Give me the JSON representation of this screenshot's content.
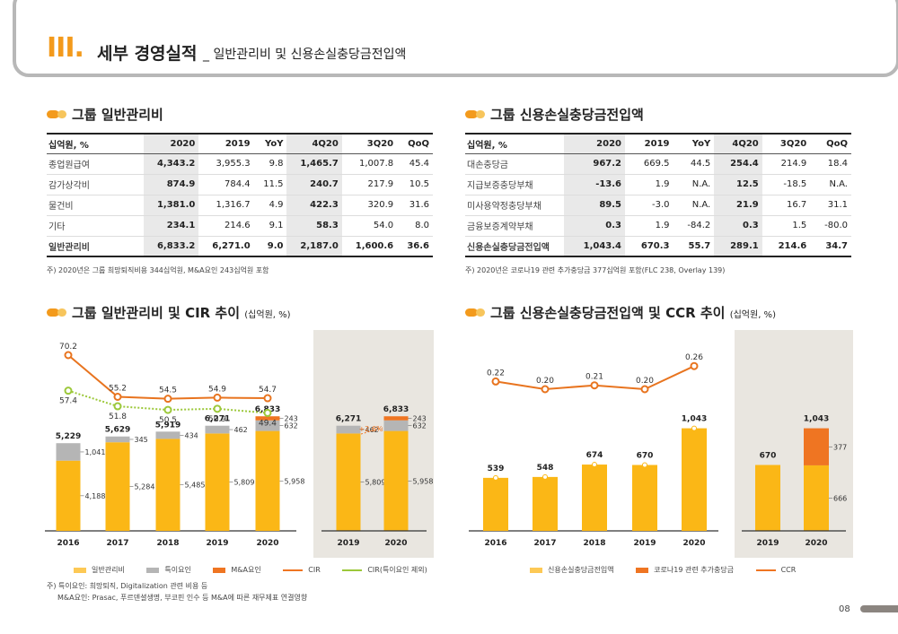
{
  "header": {
    "roman": "III",
    "title": "세부 경영실적",
    "subtitle": "_ 일반관리비 및 신용손실충당금전입액"
  },
  "sga_table": {
    "title": "그룹 일반관리비",
    "columns": [
      "십억원, %",
      "2020",
      "2019",
      "YoY",
      "4Q20",
      "3Q20",
      "QoQ"
    ],
    "rows": [
      [
        "종업원급여",
        "4,343.2",
        "3,955.3",
        "9.8",
        "1,465.7",
        "1,007.8",
        "45.4"
      ],
      [
        "감가상각비",
        "874.9",
        "784.4",
        "11.5",
        "240.7",
        "217.9",
        "10.5"
      ],
      [
        "물건비",
        "1,381.0",
        "1,316.7",
        "4.9",
        "422.3",
        "320.9",
        "31.6"
      ],
      [
        "기타",
        "234.1",
        "214.6",
        "9.1",
        "58.3",
        "54.0",
        "8.0"
      ]
    ],
    "total": [
      "일반관리비",
      "6,833.2",
      "6,271.0",
      "9.0",
      "2,187.0",
      "1,600.6",
      "36.6"
    ],
    "note": "주) 2020년은 그룹 희망퇴직비용 344십억원, M&A요인 243십억원 포함"
  },
  "ccl_table": {
    "title": "그룹 신용손실충당금전입액",
    "columns": [
      "십억원, %",
      "2020",
      "2019",
      "YoY",
      "4Q20",
      "3Q20",
      "QoQ"
    ],
    "rows": [
      [
        "대손충당금",
        "967.2",
        "669.5",
        "44.5",
        "254.4",
        "214.9",
        "18.4"
      ],
      [
        "지급보증충당부채",
        "-13.6",
        "1.9",
        "N.A.",
        "12.5",
        "-18.5",
        "N.A."
      ],
      [
        "미사용약정충당부채",
        "89.5",
        "-3.0",
        "N.A.",
        "21.9",
        "16.7",
        "31.1"
      ],
      [
        "금융보증계약부채",
        "0.3",
        "1.9",
        "-84.2",
        "0.3",
        "1.5",
        "-80.0"
      ]
    ],
    "total": [
      "신용손실충당금전입액",
      "1,043.4",
      "670.3",
      "55.7",
      "289.1",
      "214.6",
      "34.7"
    ],
    "note": "주) 2020년은 코로나19  관련 추가충당금 377십억원 포함(FLC 238, Overlay 139)"
  },
  "sga_chart_title": "그룹 일반관리비 및 CIR 추이",
  "sga_chart_unit": "(십억원, %)",
  "ccr_chart_title": "그룹 신용손실충당금전입액 및 CCR 추이",
  "ccr_chart_unit": "(십억원, %)",
  "chart_data": [
    {
      "type": "bar",
      "categories": [
        "2016",
        "2017",
        "2018",
        "2019",
        "2020"
      ],
      "series": [
        {
          "name": "일반관리비",
          "values": [
            4188,
            5284,
            5485,
            5809,
            5958
          ]
        },
        {
          "name": "특이요인",
          "values": [
            1041,
            345,
            434,
            462,
            632
          ]
        },
        {
          "name": "M&A요인",
          "values": [
            0,
            0,
            0,
            0,
            243
          ]
        }
      ],
      "totals": [
        "5,229",
        "5,629",
        "5,919",
        "6,271",
        "6,833"
      ],
      "segment_labels": [
        [
          "4,188",
          "1,041",
          ""
        ],
        [
          "5,284",
          "345",
          ""
        ],
        [
          "5,485",
          "434",
          ""
        ],
        [
          "5,809",
          "462",
          ""
        ],
        [
          "5,958",
          "632",
          "243"
        ]
      ],
      "lines": [
        {
          "name": "CIR",
          "values": [
            70.2,
            55.2,
            54.5,
            54.9,
            54.7
          ]
        },
        {
          "name": "CIR(특이요인 제외)",
          "values": [
            57.4,
            51.8,
            50.5,
            50.9,
            49.4
          ]
        }
      ]
    },
    {
      "type": "bar",
      "categories": [
        "2019",
        "2020"
      ],
      "series": [
        {
          "name": "일반관리비",
          "values": [
            5809,
            5958
          ]
        },
        {
          "name": "특이요인",
          "values": [
            462,
            632
          ]
        },
        {
          "name": "M&A요인",
          "values": [
            0,
            243
          ]
        }
      ],
      "totals": [
        "6,271",
        "6,833"
      ],
      "annotation": "+2.6%"
    },
    {
      "type": "bar",
      "categories": [
        "2016",
        "2017",
        "2018",
        "2019",
        "2020"
      ],
      "series": [
        {
          "name": "신용손실충당금전입액",
          "values": [
            539,
            548,
            674,
            670,
            1043
          ]
        }
      ],
      "totals": [
        "539",
        "548",
        "674",
        "670",
        "1,043"
      ],
      "lines": [
        {
          "name": "CCR",
          "values": [
            0.22,
            0.2,
            0.21,
            0.2,
            0.26
          ]
        }
      ]
    },
    {
      "type": "bar",
      "categories": [
        "2019",
        "2020"
      ],
      "series": [
        {
          "name": "신용손실충당금전입액",
          "values": [
            670,
            666
          ]
        },
        {
          "name": "코로나19 관련 추가충당금",
          "values": [
            0,
            377
          ]
        }
      ],
      "totals": [
        "670",
        "1,043"
      ],
      "segment_labels": [
        [
          "",
          ""
        ],
        [
          "666",
          "377"
        ]
      ]
    }
  ],
  "legend_left": [
    "일반관리비",
    "특이요인",
    "M&A요인",
    "CIR",
    "CIR(특이요인 제외)"
  ],
  "legend_right": [
    "신용손실충당금전입액",
    "코로나19 관련 추가충당금",
    "CCR"
  ],
  "bottom_notes": [
    "주) 특이요인: 희망퇴직, Digitalization 관련 비용 등",
    "M&A요인: Prasac, 푸르덴셜생명, 부코핀 인수 등 M&A에 따른 재무제표 연결영향"
  ],
  "colors": {
    "accent": "#f39a1c",
    "bar": "#fbb716",
    "special": "#b5b5b5",
    "mna": "#ef7522",
    "cir2": "#9cc83a",
    "panel": "#e9e6e0",
    "bar_light": "#fdc955"
  },
  "page_number": "08"
}
